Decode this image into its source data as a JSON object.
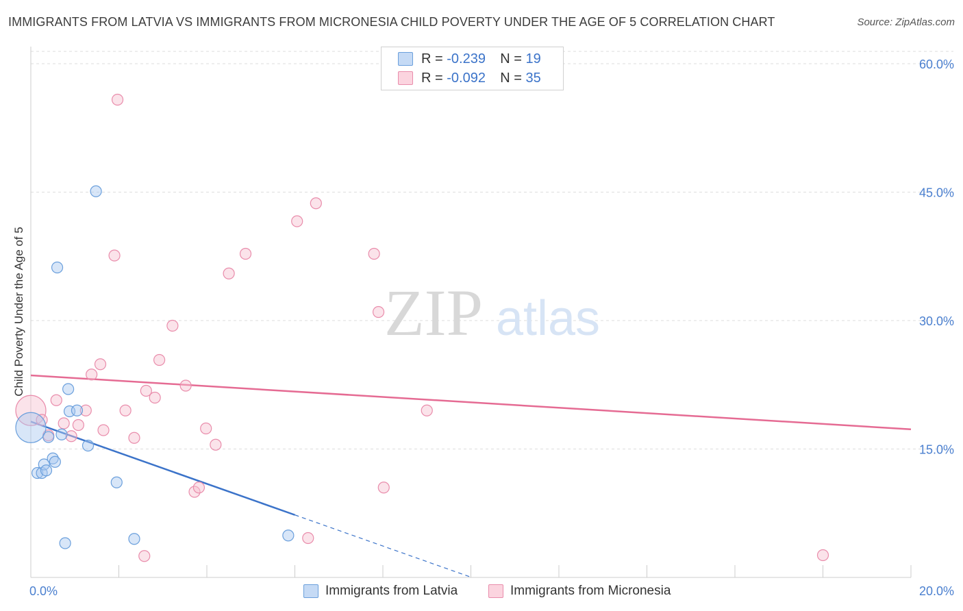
{
  "title": "IMMIGRANTS FROM LATVIA VS IMMIGRANTS FROM MICRONESIA CHILD POVERTY UNDER THE AGE OF 5 CORRELATION CHART",
  "source": "Source: ZipAtlas.com",
  "watermark": {
    "zip": "ZIP",
    "atlas": "atlas"
  },
  "legend": {
    "r_label": "R =",
    "n_label": "N =",
    "rows": [
      {
        "r": "-0.239",
        "n": "19"
      },
      {
        "r": "-0.092",
        "n": "35"
      }
    ]
  },
  "colors": {
    "latvia_fill": "#a9c8f0",
    "latvia_stroke": "#6a9fdc",
    "latvia_line": "#3b73c9",
    "micronesia_fill": "#f7c1d0",
    "micronesia_stroke": "#e98cab",
    "micronesia_line": "#e56b93",
    "grid": "#dddddd",
    "axis_label": "#4a7fcf"
  },
  "chart_data": {
    "type": "scatter",
    "title": "IMMIGRANTS FROM LATVIA VS IMMIGRANTS FROM MICRONESIA CHILD POVERTY UNDER THE AGE OF 5 CORRELATION CHART",
    "xlabel": "",
    "ylabel": "Child Poverty Under the Age of 5",
    "xlim": [
      0,
      20
    ],
    "ylim": [
      0,
      62
    ],
    "x_tick_labels": [
      "0.0%",
      "20.0%"
    ],
    "y_ticks": [
      15,
      30,
      45,
      60
    ],
    "y_tick_labels": [
      "15.0%",
      "30.0%",
      "45.0%",
      "60.0%"
    ],
    "grid": true,
    "series": [
      {
        "name": "Immigrants from Latvia",
        "points": [
          {
            "x": 0.0,
            "y": 17.5,
            "big": true
          },
          {
            "x": 0.15,
            "y": 12.2
          },
          {
            "x": 0.25,
            "y": 12.2
          },
          {
            "x": 0.3,
            "y": 13.2
          },
          {
            "x": 0.35,
            "y": 12.5
          },
          {
            "x": 0.4,
            "y": 16.4
          },
          {
            "x": 0.5,
            "y": 13.9
          },
          {
            "x": 0.55,
            "y": 13.5
          },
          {
            "x": 0.6,
            "y": 36.2
          },
          {
            "x": 0.7,
            "y": 16.7
          },
          {
            "x": 0.78,
            "y": 4.0
          },
          {
            "x": 0.85,
            "y": 22.0
          },
          {
            "x": 0.88,
            "y": 19.4
          },
          {
            "x": 1.05,
            "y": 19.5
          },
          {
            "x": 1.3,
            "y": 15.4
          },
          {
            "x": 1.48,
            "y": 45.1
          },
          {
            "x": 1.95,
            "y": 11.1
          },
          {
            "x": 2.35,
            "y": 4.5
          },
          {
            "x": 5.85,
            "y": 4.9
          }
        ],
        "trend": {
          "x0": 0,
          "y0": 18.2,
          "x1": 6.0,
          "y1": 7.3,
          "dash_to_x": 10.0
        }
      },
      {
        "name": "Immigrants from Micronesia",
        "points": [
          {
            "x": 0.0,
            "y": 19.5,
            "big": true
          },
          {
            "x": 0.25,
            "y": 18.4
          },
          {
            "x": 0.4,
            "y": 16.6
          },
          {
            "x": 0.58,
            "y": 20.7
          },
          {
            "x": 0.75,
            "y": 18.0
          },
          {
            "x": 0.92,
            "y": 16.5
          },
          {
            "x": 1.08,
            "y": 17.8
          },
          {
            "x": 1.25,
            "y": 19.5
          },
          {
            "x": 1.38,
            "y": 23.7
          },
          {
            "x": 1.58,
            "y": 24.9
          },
          {
            "x": 1.65,
            "y": 17.2
          },
          {
            "x": 1.9,
            "y": 37.6
          },
          {
            "x": 1.97,
            "y": 55.8
          },
          {
            "x": 2.15,
            "y": 19.5
          },
          {
            "x": 2.35,
            "y": 16.3
          },
          {
            "x": 2.58,
            "y": 2.5
          },
          {
            "x": 2.62,
            "y": 21.8
          },
          {
            "x": 2.82,
            "y": 21.0
          },
          {
            "x": 2.92,
            "y": 25.4
          },
          {
            "x": 3.22,
            "y": 29.4
          },
          {
            "x": 3.52,
            "y": 22.4
          },
          {
            "x": 3.72,
            "y": 10.0
          },
          {
            "x": 3.82,
            "y": 10.5
          },
          {
            "x": 3.98,
            "y": 17.4
          },
          {
            "x": 4.2,
            "y": 15.5
          },
          {
            "x": 4.5,
            "y": 35.5
          },
          {
            "x": 4.88,
            "y": 37.8
          },
          {
            "x": 6.05,
            "y": 41.6
          },
          {
            "x": 6.3,
            "y": 4.6
          },
          {
            "x": 6.48,
            "y": 43.7
          },
          {
            "x": 7.8,
            "y": 37.8
          },
          {
            "x": 7.9,
            "y": 31.0
          },
          {
            "x": 8.02,
            "y": 10.5
          },
          {
            "x": 9.0,
            "y": 19.5
          },
          {
            "x": 18.0,
            "y": 2.6
          }
        ],
        "trend": {
          "x0": 0,
          "y0": 23.6,
          "x1": 20.0,
          "y1": 17.3
        }
      }
    ]
  }
}
